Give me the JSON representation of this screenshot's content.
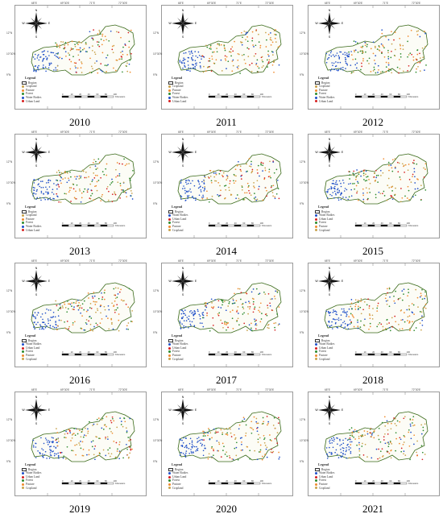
{
  "figure": {
    "panels": [
      {
        "year": "2010",
        "legend": [
          "Region",
          "Cropland",
          "Pasture",
          "Forest",
          "Water Bodies",
          "Urban Land"
        ]
      },
      {
        "year": "2011",
        "legend": [
          "Region",
          "Cropland",
          "Pasture",
          "Forest",
          "Water Bodies",
          "Urban Land"
        ]
      },
      {
        "year": "2012",
        "legend": [
          "Region",
          "Cropland",
          "Pasture",
          "Forest",
          "Water Bodies",
          "Urban Land"
        ]
      },
      {
        "year": "2013",
        "legend": [
          "Region",
          "Cropland",
          "Pasture",
          "Forest",
          "Water Bodies",
          "Urban Land"
        ]
      },
      {
        "year": "2014",
        "legend": [
          "Region",
          "Water Bodies",
          "Urban Land",
          "Forest",
          "Pasture",
          "Cropland"
        ]
      },
      {
        "year": "2015",
        "legend": [
          "Region",
          "Water Bodies",
          "Urban Land",
          "Forest",
          "Pasture",
          "Cropland"
        ]
      },
      {
        "year": "2016",
        "legend": [
          "Region",
          "Water Bodies",
          "Urban Land",
          "Forest",
          "Pasture",
          "Cropland"
        ]
      },
      {
        "year": "2017",
        "legend": [
          "Region",
          "Water Bodies",
          "Urban Land",
          "Forest",
          "Pasture",
          "Cropland"
        ]
      },
      {
        "year": "2018",
        "legend": [
          "Region",
          "Water Bodies",
          "Urban Land",
          "Forest",
          "Pasture",
          "Cropland"
        ]
      },
      {
        "year": "2019",
        "legend": [
          "Region",
          "Water Bodies",
          "Urban Land",
          "Forest",
          "Pasture",
          "Cropland"
        ]
      },
      {
        "year": "2020",
        "legend": [
          "Region",
          "Water Bodies",
          "Urban Land",
          "Forest",
          "Pasture",
          "Cropland"
        ]
      },
      {
        "year": "2021",
        "legend": [
          "Region",
          "Water Bodies",
          "Urban Land",
          "Forest",
          "Pasture",
          "Cropland"
        ]
      }
    ],
    "legend_title": "Legend",
    "compass_letters": {
      "n": "N",
      "s": "S",
      "e": "E",
      "w": "W"
    },
    "scale_unit": "Kilometers",
    "scale_ticks": [
      "0",
      "10",
      "20",
      "40",
      "60",
      "80",
      "100"
    ],
    "coords_top": [
      "68°E",
      "69°30'E",
      "71°E",
      "72°30'E"
    ],
    "coords_left": [
      "12°N",
      "10°30'N",
      "9°N"
    ],
    "class_colors": {
      "Region": "#ffffff",
      "Cropland": "#c8a24a",
      "Pasture": "#f08a2c",
      "Forest": "#2e8b2e",
      "Water Bodies": "#1f4fc9",
      "Urban Land": "#d62020"
    }
  }
}
